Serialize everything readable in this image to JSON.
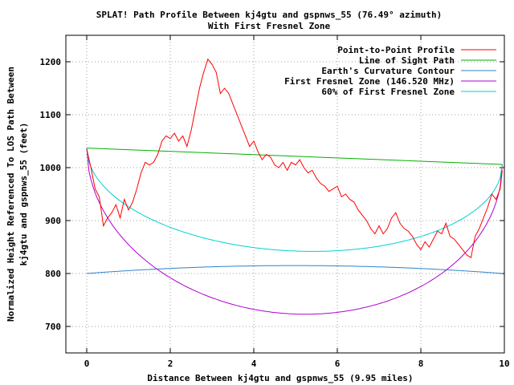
{
  "chart_data": {
    "type": "line",
    "title": "SPLAT! Path Profile Between kj4gtu and gspnws_55 (76.49° azimuth)",
    "subtitle": "With First Fresnel Zone",
    "xlabel": "Distance Between kj4gtu and gspnws_55 (9.95 miles)",
    "ylabel": [
      "Normalized Height Referenced To LOS Path Between",
      "kj4gtu and gspnws_55 (feet)"
    ],
    "xlim": [
      -0.5,
      10.0
    ],
    "ylim": [
      650,
      1250
    ],
    "x_ticks": [
      0,
      2,
      4,
      6,
      8,
      10
    ],
    "y_ticks": [
      700,
      800,
      900,
      1000,
      1100,
      1200
    ],
    "grid": true,
    "legend_position": "top-right",
    "series": [
      {
        "name": "Point-to-Point Profile",
        "color": "#ff0000",
        "x": [
          0.0,
          0.1,
          0.2,
          0.3,
          0.4,
          0.5,
          0.6,
          0.7,
          0.8,
          0.9,
          1.0,
          1.1,
          1.2,
          1.3,
          1.4,
          1.5,
          1.6,
          1.7,
          1.8,
          1.9,
          2.0,
          2.1,
          2.2,
          2.3,
          2.4,
          2.5,
          2.6,
          2.7,
          2.8,
          2.9,
          3.0,
          3.1,
          3.2,
          3.3,
          3.4,
          3.5,
          3.6,
          3.7,
          3.8,
          3.9,
          4.0,
          4.1,
          4.2,
          4.3,
          4.4,
          4.5,
          4.6,
          4.7,
          4.8,
          4.9,
          5.0,
          5.1,
          5.2,
          5.3,
          5.4,
          5.5,
          5.6,
          5.7,
          5.8,
          5.9,
          6.0,
          6.1,
          6.2,
          6.3,
          6.4,
          6.5,
          6.6,
          6.7,
          6.8,
          6.9,
          7.0,
          7.1,
          7.2,
          7.3,
          7.4,
          7.5,
          7.6,
          7.7,
          7.8,
          7.9,
          8.0,
          8.1,
          8.2,
          8.3,
          8.4,
          8.5,
          8.6,
          8.7,
          8.8,
          8.9,
          9.0,
          9.1,
          9.2,
          9.3,
          9.4,
          9.5,
          9.6,
          9.7,
          9.8,
          9.9,
          9.95
        ],
        "y": [
          1035,
          1000,
          960,
          945,
          890,
          905,
          915,
          930,
          905,
          940,
          920,
          935,
          960,
          990,
          1010,
          1005,
          1010,
          1025,
          1050,
          1060,
          1055,
          1065,
          1050,
          1060,
          1040,
          1070,
          1110,
          1150,
          1180,
          1205,
          1195,
          1180,
          1140,
          1150,
          1140,
          1120,
          1100,
          1080,
          1060,
          1040,
          1050,
          1030,
          1015,
          1025,
          1020,
          1005,
          1000,
          1010,
          995,
          1010,
          1005,
          1015,
          1000,
          990,
          995,
          980,
          970,
          965,
          955,
          960,
          965,
          945,
          950,
          940,
          935,
          920,
          910,
          900,
          885,
          875,
          890,
          875,
          885,
          905,
          915,
          895,
          885,
          880,
          870,
          855,
          845,
          860,
          850,
          865,
          880,
          875,
          895,
          870,
          865,
          855,
          845,
          835,
          830,
          870,
          885,
          905,
          925,
          950,
          940,
          960,
          995
        ]
      },
      {
        "name": "Line of Sight Path",
        "color": "#00b000",
        "x": [
          0,
          9.95
        ],
        "y": [
          1037,
          1006
        ]
      },
      {
        "name": "Earth's Curvature Contour",
        "color": "#3080c8",
        "curve": "parabola",
        "x_range": [
          0,
          9.95
        ],
        "end_value": 800,
        "mid_value": 815
      },
      {
        "name": "First Fresnel Zone (146.520 MHz)",
        "color": "#b000d0",
        "curve": "ellipse-below-los",
        "x_range": [
          0,
          9.95
        ],
        "max_depth": 298
      },
      {
        "name": "60% of First Fresnel Zone",
        "color": "#00d0d0",
        "curve": "ellipse-below-los",
        "x_range": [
          0,
          9.95
        ],
        "max_depth": 179
      }
    ]
  }
}
